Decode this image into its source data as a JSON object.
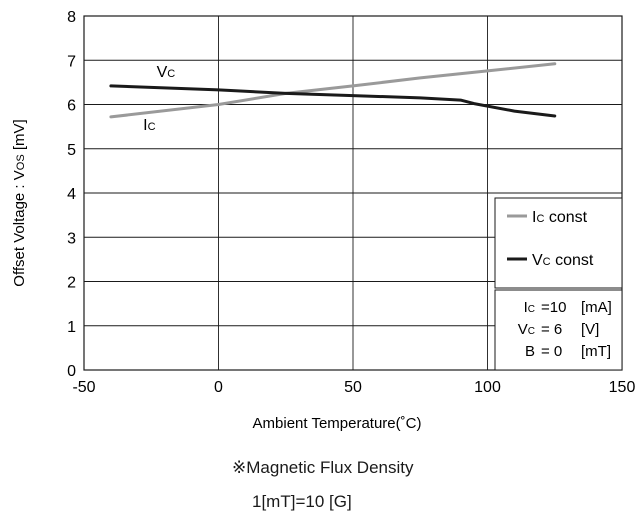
{
  "chart_data": {
    "type": "line",
    "xlabel": "Ambient Temperature(˚C)",
    "ylabel": "Offset Voltage : Vos  [mV]",
    "ylabel_parts": {
      "pre": "Offset Voltage : V",
      "sub": "OS",
      "post": "  [mV]"
    },
    "xlim": [
      -50,
      150
    ],
    "ylim": [
      0,
      8
    ],
    "xticks": [
      -50,
      0,
      50,
      100,
      150
    ],
    "yticks": [
      0,
      1,
      2,
      3,
      4,
      5,
      6,
      7,
      8
    ],
    "grid": true,
    "series": [
      {
        "name": "Ic const",
        "main": "I",
        "sub": "C",
        "suffix": " const",
        "color": "#9a9a9a",
        "x": [
          -40,
          0,
          25,
          50,
          75,
          100,
          125
        ],
        "y": [
          5.72,
          6.0,
          6.25,
          6.42,
          6.6,
          6.76,
          6.92
        ]
      },
      {
        "name": "Vc const",
        "main": "V",
        "sub": "C",
        "suffix": " const",
        "color": "#1a1a1a",
        "x": [
          -40,
          0,
          25,
          50,
          75,
          90,
          95,
          110,
          125
        ],
        "y": [
          6.42,
          6.33,
          6.25,
          6.2,
          6.15,
          6.1,
          6.02,
          5.85,
          5.74
        ]
      }
    ],
    "annotations": [
      {
        "main": "V",
        "sub": "C",
        "x": -23,
        "y": 6.62
      },
      {
        "main": "I",
        "sub": "C",
        "x": -28,
        "y": 5.42
      }
    ],
    "legend_position": "right",
    "conditions": [
      {
        "main": "I",
        "sub": "C",
        "eq": "=10",
        "unit": "[mA]"
      },
      {
        "main": "V",
        "sub": "C",
        "eq": "= 6",
        "unit": "[V]"
      },
      {
        "main": "B",
        "sub": "",
        "eq": "= 0",
        "unit": "[mT]"
      }
    ]
  },
  "notes": {
    "line1": "※Magnetic Flux Density",
    "line2": "1[mT]=10 [G]"
  }
}
